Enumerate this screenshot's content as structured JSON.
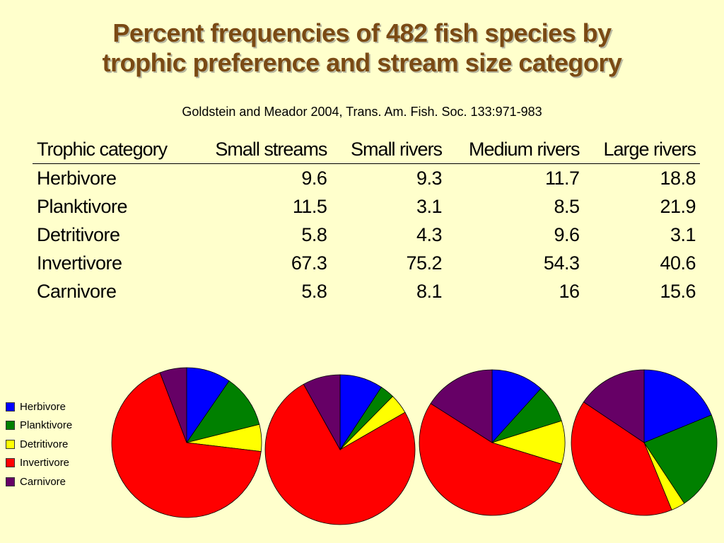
{
  "title_line1": "Percent frequencies of 482 fish species by",
  "title_line2": "trophic preference and stream size category",
  "subtitle": "Goldstein and Meador 2004, Trans. Am. Fish. Soc. 133:971-983",
  "table": {
    "headers": [
      "Trophic category",
      "Small streams",
      "Small rivers",
      "Medium rivers",
      "Large rivers"
    ],
    "rows": [
      [
        "Herbivore",
        "9.6",
        "9.3",
        "11.7",
        "18.8"
      ],
      [
        "Planktivore",
        "11.5",
        "3.1",
        "8.5",
        "21.9"
      ],
      [
        "Detritivore",
        "5.8",
        "4.3",
        "9.6",
        "3.1"
      ],
      [
        "Invertivore",
        "67.3",
        "75.2",
        "54.3",
        "40.6"
      ],
      [
        "Carnivore",
        "5.8",
        "8.1",
        "16",
        "15.6"
      ]
    ]
  },
  "legend": [
    {
      "label": "Herbivore",
      "color": "#0000ff"
    },
    {
      "label": "Planktivore",
      "color": "#008000"
    },
    {
      "label": "Detritivore",
      "color": "#ffff00"
    },
    {
      "label": "Invertivore",
      "color": "#ff0000"
    },
    {
      "label": "Carnivore",
      "color": "#660066"
    }
  ],
  "chart_data": [
    {
      "type": "pie",
      "categories": [
        "Herbivore",
        "Planktivore",
        "Detritivore",
        "Invertivore",
        "Carnivore"
      ],
      "values": [
        9.6,
        11.5,
        5.8,
        67.3,
        5.8
      ]
    },
    {
      "type": "pie",
      "categories": [
        "Herbivore",
        "Planktivore",
        "Detritivore",
        "Invertivore",
        "Carnivore"
      ],
      "values": [
        9.3,
        3.1,
        4.3,
        75.2,
        8.1
      ]
    },
    {
      "type": "pie",
      "categories": [
        "Herbivore",
        "Planktivore",
        "Detritivore",
        "Invertivore",
        "Carnivore"
      ],
      "values": [
        11.7,
        8.5,
        9.6,
        54.3,
        16
      ]
    },
    {
      "type": "pie",
      "categories": [
        "Herbivore",
        "Planktivore",
        "Detritivore",
        "Invertivore",
        "Carnivore"
      ],
      "values": [
        18.8,
        21.9,
        3.1,
        40.6,
        15.6
      ]
    }
  ]
}
